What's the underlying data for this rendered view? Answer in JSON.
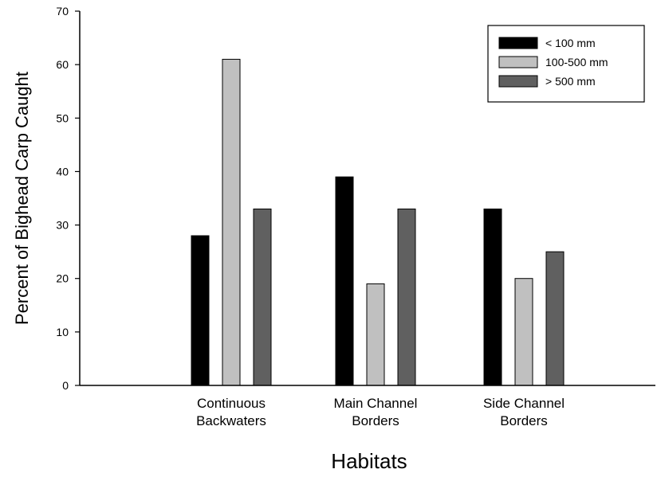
{
  "chart_data": {
    "type": "bar",
    "xlabel": "Habitats",
    "ylabel": "Percent of Bighead Carp Caught",
    "ylim": [
      0,
      70
    ],
    "yticks": [
      0,
      10,
      20,
      30,
      40,
      50,
      60,
      70
    ],
    "grid": false,
    "legend_position": "top-right",
    "categories": [
      [
        "Continuous",
        "Backwaters"
      ],
      [
        "Main Channel",
        "Borders"
      ],
      [
        "Side Channel",
        "Borders"
      ]
    ],
    "series": [
      {
        "name": "< 100 mm",
        "color": "#000000",
        "values": [
          28,
          39,
          33
        ]
      },
      {
        "name": "100-500 mm",
        "color": "#c0c0c0",
        "values": [
          61,
          19,
          20
        ]
      },
      {
        "name": "> 500 mm",
        "color": "#606060",
        "values": [
          33,
          33,
          25
        ]
      }
    ]
  }
}
